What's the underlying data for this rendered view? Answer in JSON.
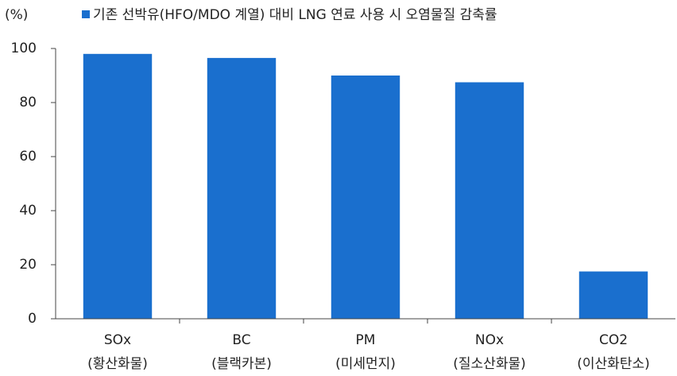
{
  "chart_data": {
    "type": "bar",
    "unit_label": "(%)",
    "categories": [
      [
        "SOx",
        "(황산화물)"
      ],
      [
        "BC",
        "(블랙카본)"
      ],
      [
        "PM",
        "(미세먼지)"
      ],
      [
        "NOx",
        "(질소산화물)"
      ],
      [
        "CO2",
        "(이산화탄소)"
      ]
    ],
    "series": [
      {
        "name": "기존 선박유(HFO/MDO 계열) 대비 LNG 연료 사용 시 오염물질 감축률",
        "color": "#1a6fce",
        "values": [
          98,
          96.5,
          90,
          87.5,
          17.5
        ]
      }
    ],
    "ylim": [
      0,
      100
    ],
    "yticks": [
      0,
      20,
      40,
      60,
      80,
      100
    ],
    "grid": false
  }
}
